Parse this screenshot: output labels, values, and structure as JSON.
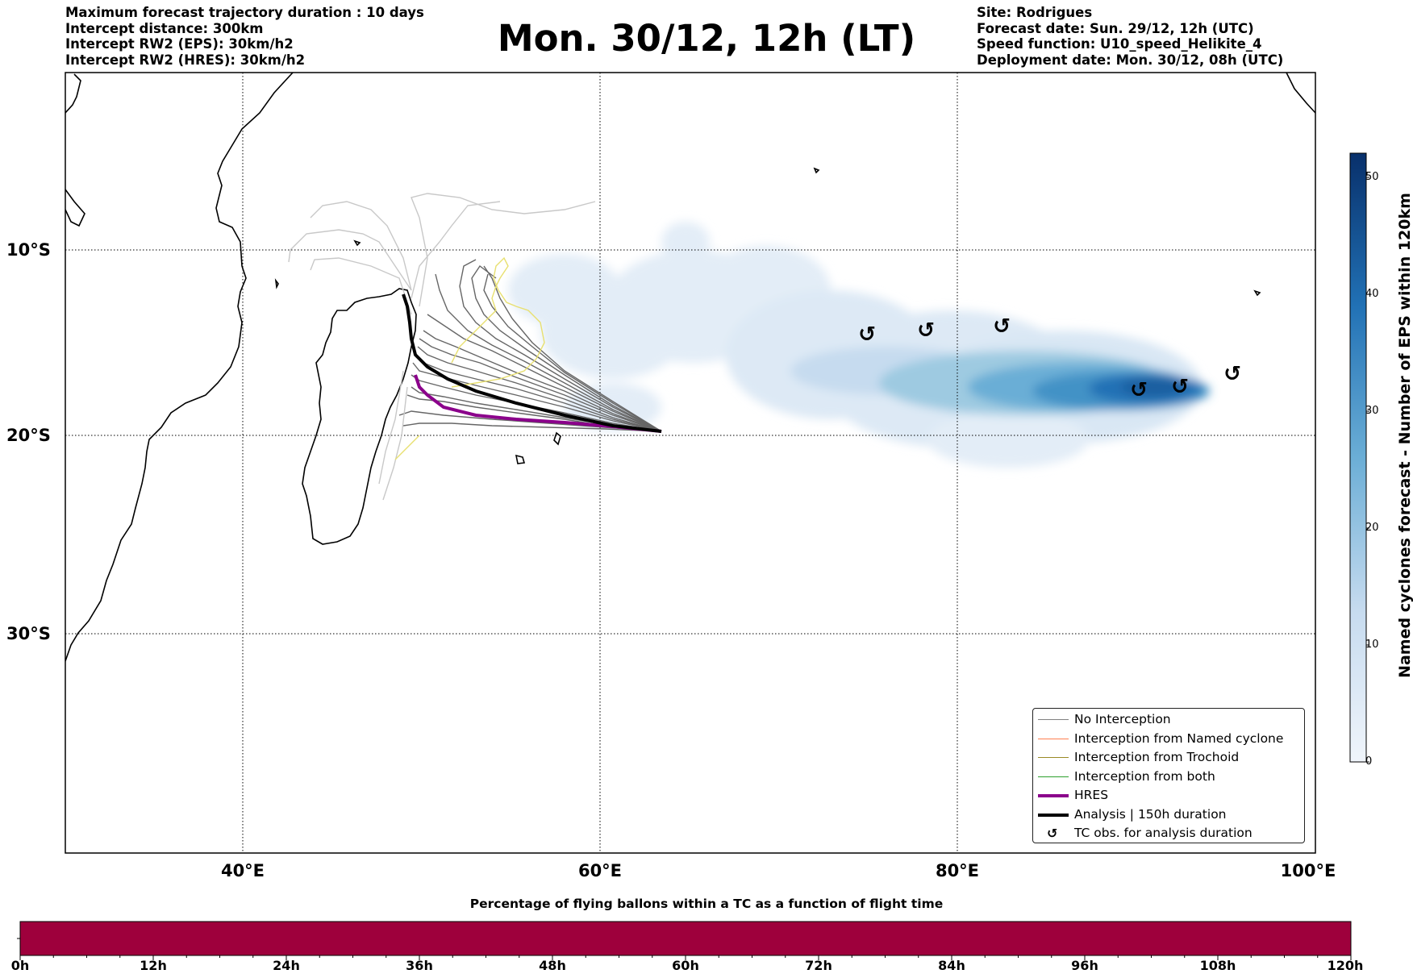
{
  "header_left": [
    "Maximum forecast trajectory duration : 10 days",
    "Intercept distance: 300km",
    "Intercept RW2 (EPS):  30km/h2",
    "Intercept RW2 (HRES): 30km/h2"
  ],
  "title": "Mon. 30/12, 12h (LT)",
  "header_right": [
    "Site: Rodrigues",
    "Forecast date: Sun. 29/12, 12h (UTC)",
    "Speed function: U10_speed_Helikite_4",
    "Deployment date: Mon. 30/12, 08h (UTC)"
  ],
  "chart_data": [
    {
      "type": "map",
      "x_axis": {
        "ticks": [
          "40°E",
          "60°E",
          "80°E",
          "100°E"
        ],
        "range": [
          30,
          100
        ]
      },
      "y_axis": {
        "ticks": [
          "10°S",
          "20°S",
          "30°S"
        ],
        "range": [
          -43.5,
          -0.5
        ]
      },
      "grid": true,
      "legend": {
        "placement": "bottom-right",
        "entries": [
          {
            "label": "No Interception",
            "color": "#808080"
          },
          {
            "label": "Interception from Named cyclone",
            "color": "#ff7f50"
          },
          {
            "label": "Interception from Trochoid",
            "color": "#9a8a25"
          },
          {
            "label": "Interception from both",
            "color": "#2ca02c"
          },
          {
            "label": "HRES",
            "color": "#8b008b"
          },
          {
            "label": "Analysis | 150h duration",
            "color": "#000000"
          },
          {
            "label": "TC obs. for analysis duration",
            "icon": "cyclone-icon"
          }
        ]
      },
      "launch_site": {
        "lon": 63.4,
        "lat": -19.7
      },
      "analysis_track": [
        [
          63.4,
          -19.7
        ],
        [
          61.5,
          -19.4
        ],
        [
          59.5,
          -18.9
        ],
        [
          57.5,
          -18.3
        ],
        [
          55.5,
          -17.6
        ],
        [
          53.5,
          -16.9
        ],
        [
          52,
          -16.2
        ],
        [
          51.2,
          -15.4
        ],
        [
          50.8,
          -14.2
        ],
        [
          50.6,
          -12.6
        ],
        [
          50,
          -11.8
        ]
      ],
      "hres_track": [
        [
          63.4,
          -19.7
        ],
        [
          61.5,
          -19.5
        ],
        [
          59,
          -19.2
        ],
        [
          57,
          -19.0
        ],
        [
          55,
          -18.8
        ],
        [
          53,
          -18.4
        ],
        [
          51.8,
          -17.8
        ],
        [
          51,
          -17.3
        ],
        [
          50.2,
          -16.8
        ]
      ],
      "tc_observations": [
        {
          "lon": 75,
          "lat": -14.3
        },
        {
          "lon": 78.3,
          "lat": -14.1
        },
        {
          "lon": 82.4,
          "lat": -13.9
        },
        {
          "lon": 90,
          "lat": -17.4
        },
        {
          "lon": 92.3,
          "lat": -17.2
        },
        {
          "lon": 95.3,
          "lat": -16.5
        }
      ],
      "cyclone_density": {
        "max": 52,
        "peak_lon": 90,
        "peak_lat": -17.3
      }
    },
    {
      "type": "colorbar",
      "label": "Named cyclones forecast - Number of EPS within 120km",
      "ticks": [
        "0",
        "10",
        "20",
        "30",
        "40",
        "50"
      ],
      "range": [
        0,
        52
      ],
      "colors": [
        "#f0f5fb",
        "#c6dbef",
        "#6baed6",
        "#2171b5",
        "#08306b"
      ]
    },
    {
      "type": "bar",
      "title": "Percentage of flying ballons within a TC as a function of flight time",
      "ticks": [
        "0h",
        "12h",
        "24h",
        "36h",
        "48h",
        "60h",
        "72h",
        "84h",
        "96h",
        "108h",
        "120h"
      ],
      "range": [
        0,
        120
      ],
      "fill_color": "#9e003c"
    }
  ]
}
